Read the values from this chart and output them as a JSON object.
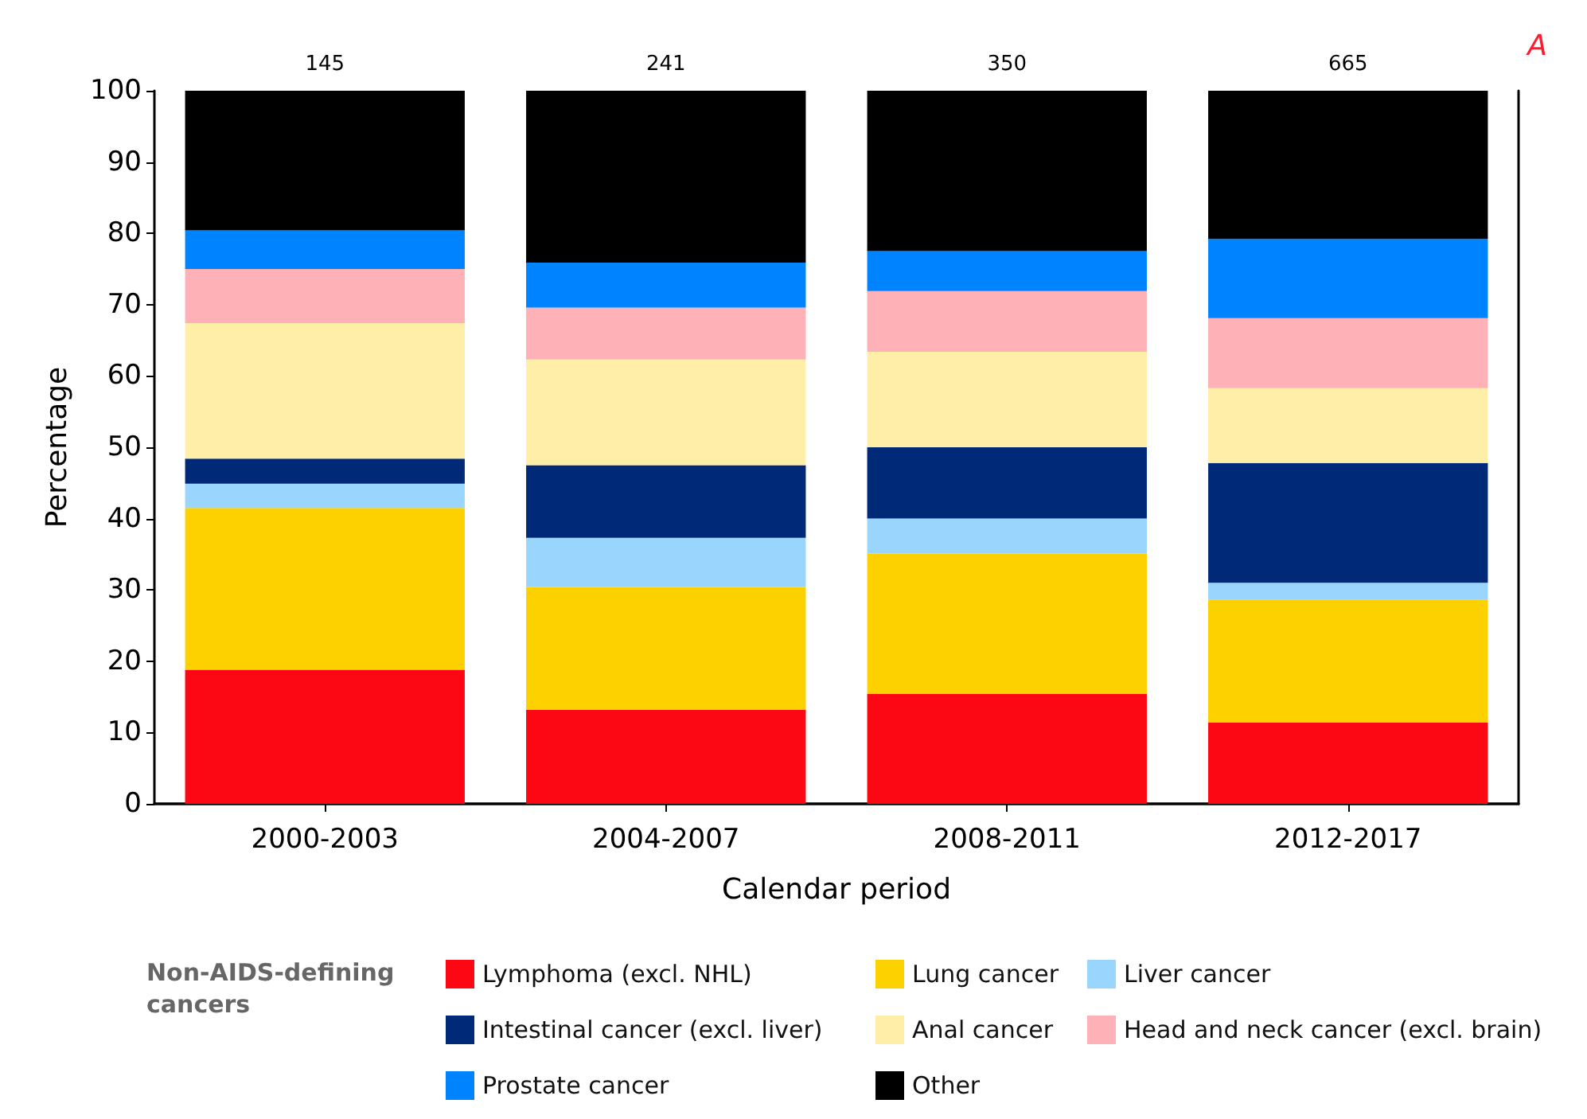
{
  "chart_data": {
    "type": "bar",
    "stacked": true,
    "xlabel": "Calendar period",
    "ylabel": "Percentage",
    "legend_title": "Non-AIDS-defining cancers",
    "annotations": [
      "145",
      "241",
      "350",
      "665",
      "A"
    ],
    "categories": [
      "2000-2003",
      "2004-2007",
      "2008-2011",
      "2012-2017"
    ],
    "series": [
      {
        "name": "Lymphoma (excl. NHL)",
        "color": "#fc0714",
        "values": [
          18.8,
          13.2,
          15.4,
          11.4
        ]
      },
      {
        "name": "Lung cancer",
        "color": "#fdd000",
        "values": [
          22.7,
          17.2,
          19.7,
          17.2
        ]
      },
      {
        "name": "Liver cancer",
        "color": "#99d5fd",
        "values": [
          3.4,
          6.9,
          4.9,
          2.4
        ]
      },
      {
        "name": "Intestinal cancer (excl. liver)",
        "color": "#002a78",
        "values": [
          3.5,
          10.2,
          10.0,
          16.8
        ]
      },
      {
        "name": "Anal cancer",
        "color": "#feeea8",
        "values": [
          19.0,
          14.8,
          13.4,
          10.5
        ]
      },
      {
        "name": "Head and neck cancer (excl. brain)",
        "color": "#feb1b6",
        "values": [
          7.6,
          7.3,
          8.5,
          9.8
        ]
      },
      {
        "name": "Prostate cancer",
        "color": "#0083fe",
        "values": [
          5.4,
          6.3,
          5.6,
          11.1
        ]
      },
      {
        "name": "Other",
        "color": "#000000",
        "values": [
          19.6,
          24.1,
          22.5,
          20.8
        ]
      }
    ],
    "ylim": [
      0,
      100
    ],
    "yticks": [
      0,
      10,
      20,
      30,
      40,
      50,
      60,
      70,
      80,
      90,
      100
    ],
    "grid": false,
    "legend": "bottom"
  }
}
